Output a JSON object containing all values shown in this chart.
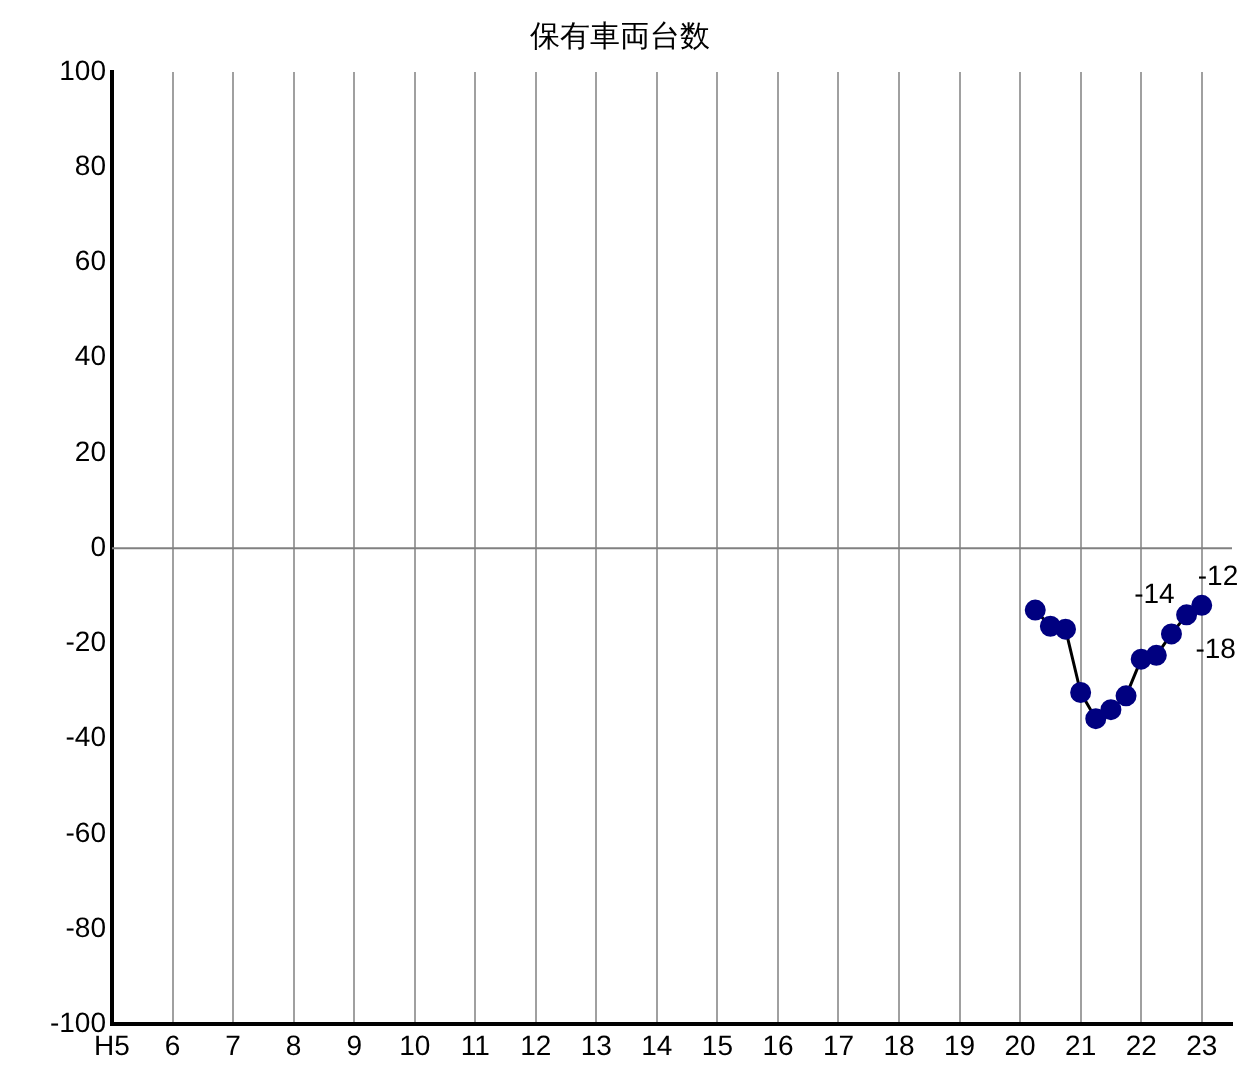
{
  "chart_data": {
    "type": "line",
    "title": "保有車両台数",
    "x": [
      20.25,
      20.5,
      20.75,
      21,
      21.25,
      21.5,
      21.75,
      22,
      22.25,
      22.5,
      22.75,
      23
    ],
    "series": [
      {
        "color": "#000080",
        "values": [
          -13,
          -16.4,
          -17,
          -30.3,
          -35.8,
          -33.9,
          -31,
          -23.3,
          -22.5,
          -18,
          -14,
          -12
        ],
        "value_labels": [
          null,
          null,
          null,
          null,
          null,
          null,
          null,
          null,
          null,
          "-18",
          "-14",
          "-12"
        ]
      }
    ],
    "xlim": [
      5,
      23.5
    ],
    "xticks": [
      {
        "value": 5,
        "label": "H5"
      },
      6,
      7,
      8,
      9,
      10,
      11,
      12,
      13,
      14,
      15,
      16,
      17,
      18,
      19,
      20,
      21,
      22,
      23
    ],
    "ylim": [
      -100,
      100
    ],
    "yticks": [
      -100,
      -80,
      -60,
      -40,
      -20,
      0,
      20,
      40,
      60,
      80,
      100
    ],
    "ref_lines": [
      {
        "axis": "y",
        "value": 0
      }
    ],
    "grid": "x",
    "marker": "circle",
    "line_style": "solid",
    "legend": false
  }
}
